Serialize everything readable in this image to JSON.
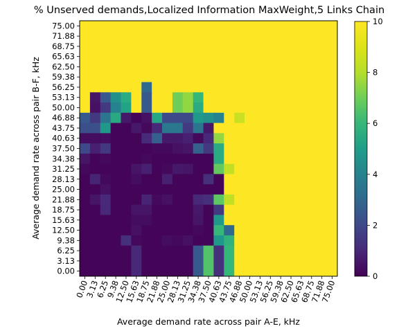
{
  "chart_data": {
    "type": "heatmap",
    "title": "% Unserved demands,Localized Information MaxWeight,5 Links Chain",
    "xlabel": "Average demand rate across pair A-E, kHz",
    "ylabel": "Average demand rate across pair B-F, kHz",
    "x_ticks": [
      "0.00",
      "3.13",
      "6.25",
      "9.38",
      "12.50",
      "15.63",
      "18.75",
      "21.88",
      "25.00",
      "28.13",
      "31.25",
      "34.38",
      "37.50",
      "40.63",
      "43.75",
      "46.88",
      "50.00",
      "53.13",
      "56.25",
      "59.38",
      "62.50",
      "65.63",
      "68.75",
      "71.88",
      "75.00"
    ],
    "y_ticks": [
      "75.00",
      "71.88",
      "68.75",
      "65.63",
      "62.50",
      "59.38",
      "56.25",
      "53.13",
      "50.00",
      "46.88",
      "43.75",
      "40.63",
      "37.50",
      "34.38",
      "31.25",
      "28.13",
      "25.00",
      "21.88",
      "18.75",
      "15.63",
      "12.50",
      "9.38",
      "6.25",
      "3.13",
      "0.00"
    ],
    "colorbar": {
      "vmin": 0,
      "vmax": 10,
      "ticks": [
        "0",
        "2",
        "4",
        "6",
        "8",
        "10"
      ],
      "colormap": "viridis"
    },
    "values": [
      [
        10,
        10,
        10,
        10,
        10,
        10,
        10,
        10,
        10,
        10,
        10,
        10,
        10,
        10,
        10,
        10,
        10,
        10,
        10,
        10,
        10,
        10,
        10,
        10,
        10
      ],
      [
        10,
        10,
        10,
        10,
        10,
        10,
        10,
        10,
        10,
        10,
        10,
        10,
        10,
        10,
        10,
        10,
        10,
        10,
        10,
        10,
        10,
        10,
        10,
        10,
        10
      ],
      [
        10,
        10,
        10,
        10,
        10,
        10,
        10,
        10,
        10,
        10,
        10,
        10,
        10,
        10,
        10,
        10,
        10,
        10,
        10,
        10,
        10,
        10,
        10,
        10,
        10
      ],
      [
        10,
        10,
        10,
        10,
        10,
        10,
        10,
        10,
        10,
        10,
        10,
        10,
        10,
        10,
        10,
        10,
        10,
        10,
        10,
        10,
        10,
        10,
        10,
        10,
        10
      ],
      [
        10,
        10,
        10,
        10,
        10,
        10,
        10,
        10,
        10,
        10,
        10,
        10,
        10,
        10,
        10,
        10,
        10,
        10,
        10,
        10,
        10,
        10,
        10,
        10,
        10
      ],
      [
        10,
        10,
        10,
        10,
        10,
        10,
        10,
        10,
        10,
        10,
        10,
        10,
        10,
        10,
        10,
        10,
        10,
        10,
        10,
        10,
        10,
        10,
        10,
        10,
        10
      ],
      [
        10,
        10,
        10,
        10,
        10,
        10,
        3,
        10,
        10,
        10,
        10,
        10,
        10,
        10,
        10,
        10,
        10,
        10,
        10,
        10,
        10,
        10,
        10,
        10,
        10
      ],
      [
        10,
        0.5,
        2.5,
        4.5,
        5.5,
        10,
        2.5,
        10,
        10,
        7,
        7.5,
        6,
        10,
        10,
        10,
        10,
        10,
        10,
        10,
        10,
        10,
        10,
        10,
        10,
        10
      ],
      [
        10,
        0.4,
        1.5,
        4,
        5.2,
        10,
        2.5,
        10,
        10,
        7,
        7.5,
        5.5,
        10,
        10,
        10,
        10,
        10,
        10,
        10,
        10,
        10,
        10,
        10,
        10,
        10
      ],
      [
        2.5,
        1.5,
        3.5,
        5.4,
        0.6,
        0.1,
        0.4,
        5.3,
        2,
        2,
        2,
        4.8,
        4.5,
        4,
        10,
        8.5,
        10,
        10,
        10,
        10,
        10,
        10,
        10,
        10,
        10
      ],
      [
        2.2,
        2.2,
        4.8,
        0.1,
        0.1,
        0.6,
        0.2,
        1,
        3.6,
        3.6,
        1.5,
        3.5,
        0.6,
        10,
        10,
        10,
        10,
        10,
        10,
        10,
        10,
        10,
        10,
        10,
        10
      ],
      [
        0.3,
        0.3,
        0.3,
        0.1,
        0.1,
        0.1,
        1.1,
        2.7,
        0.6,
        0.6,
        0.8,
        0.2,
        1,
        7.5,
        10,
        10,
        10,
        10,
        10,
        10,
        10,
        10,
        10,
        10,
        10
      ],
      [
        2,
        0.8,
        1.5,
        0.1,
        0.1,
        0.1,
        0.1,
        0.2,
        0.2,
        0.4,
        0.5,
        2.8,
        1.5,
        5.5,
        10,
        10,
        10,
        10,
        10,
        10,
        10,
        10,
        10,
        10,
        10
      ],
      [
        0.5,
        0.1,
        0.2,
        0.1,
        0.1,
        0.1,
        0.2,
        0.1,
        0.1,
        0.1,
        0.1,
        0.1,
        0.1,
        5.5,
        10,
        10,
        10,
        10,
        10,
        10,
        10,
        10,
        10,
        10,
        10
      ],
      [
        0.2,
        0.1,
        0.1,
        0.1,
        0.1,
        0.5,
        0.8,
        0.1,
        0.2,
        0.6,
        0.5,
        0.1,
        0.1,
        6.8,
        8.3,
        10,
        10,
        10,
        10,
        10,
        10,
        10,
        10,
        10,
        10
      ],
      [
        0.1,
        0.9,
        0.2,
        0.1,
        0.1,
        0.3,
        0.1,
        0.1,
        0.8,
        0.1,
        0.1,
        0.1,
        1.2,
        0.1,
        10,
        10,
        10,
        10,
        10,
        10,
        10,
        10,
        10,
        10,
        10
      ],
      [
        0.1,
        0.1,
        0.4,
        0.1,
        0.1,
        0.1,
        0.1,
        0.1,
        0.1,
        0.1,
        0.1,
        0.1,
        0.1,
        0.1,
        10,
        10,
        10,
        10,
        10,
        10,
        10,
        10,
        10,
        10,
        10
      ],
      [
        0.1,
        0.5,
        1,
        0.1,
        0.1,
        0.1,
        0.9,
        0.2,
        0.4,
        0.1,
        0.1,
        1,
        1.2,
        6.7,
        8.3,
        10,
        10,
        10,
        10,
        10,
        10,
        10,
        10,
        10,
        10
      ],
      [
        0.1,
        0.1,
        1,
        0.1,
        0.1,
        0.5,
        0.5,
        0.1,
        0.1,
        0.1,
        0.1,
        0.6,
        0.1,
        1.5,
        10,
        10,
        10,
        10,
        10,
        10,
        10,
        10,
        10,
        10,
        10
      ],
      [
        0.1,
        0.1,
        0.1,
        0.1,
        0.1,
        0.3,
        0.3,
        0.1,
        0.1,
        0.1,
        0.1,
        0.5,
        0.1,
        4.8,
        10,
        10,
        10,
        10,
        10,
        10,
        10,
        10,
        10,
        10,
        10
      ],
      [
        0.1,
        0.1,
        0.1,
        0.1,
        0.1,
        0.4,
        0.1,
        0.1,
        0.1,
        0.1,
        0.1,
        0.2,
        0.1,
        6,
        3,
        10,
        10,
        10,
        10,
        10,
        10,
        10,
        10,
        10,
        10
      ],
      [
        0.1,
        0.1,
        0.1,
        0.1,
        1.2,
        0.2,
        0.1,
        0.1,
        0.3,
        0.2,
        0.4,
        0.1,
        0.1,
        4.8,
        5.8,
        10,
        10,
        10,
        10,
        10,
        10,
        10,
        10,
        10,
        10
      ],
      [
        0.1,
        0.1,
        0.1,
        0.1,
        0.1,
        1,
        0.1,
        0.1,
        0.1,
        0.1,
        0.1,
        2.5,
        6.5,
        1.2,
        6,
        10,
        10,
        10,
        10,
        10,
        10,
        10,
        10,
        10,
        10
      ],
      [
        0.1,
        0.1,
        0.1,
        0.1,
        0.1,
        1,
        0.1,
        0.1,
        0.1,
        0.1,
        0.1,
        2.5,
        6.5,
        1.2,
        6,
        10,
        10,
        10,
        10,
        10,
        10,
        10,
        10,
        10,
        10
      ],
      [
        0.1,
        0.1,
        0.1,
        0.1,
        0.1,
        1,
        0.1,
        0.1,
        0.1,
        0.1,
        0.1,
        2.5,
        6.5,
        1.2,
        6,
        10,
        10,
        10,
        10,
        10,
        10,
        10,
        10,
        10,
        10
      ]
    ]
  }
}
